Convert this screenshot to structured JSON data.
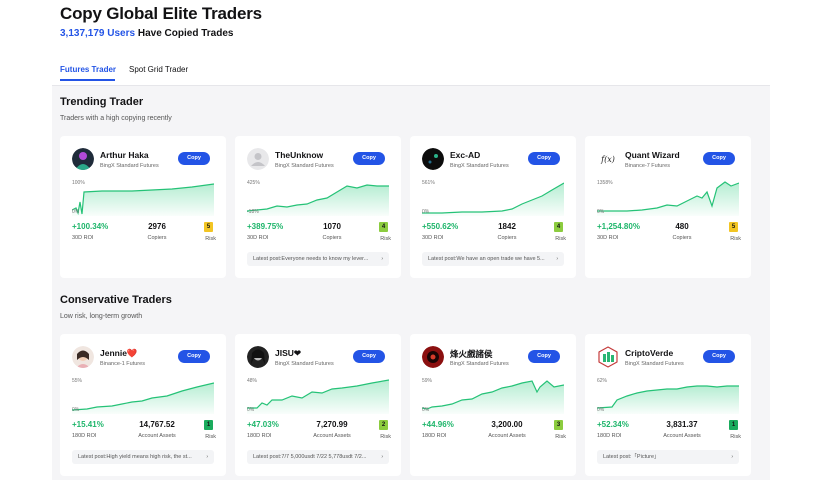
{
  "header": {
    "title": "Copy Global Elite Traders",
    "user_count": "3,137,179 Users",
    "subtitle_rest": " Have Copied Trades"
  },
  "tabs": [
    {
      "label": "Futures Trader",
      "active": true
    },
    {
      "label": "Spot Grid Trader",
      "active": false
    }
  ],
  "copy_label": "Copy",
  "sections": [
    {
      "title": "Trending Trader",
      "subtitle": "Traders with a high copying recently",
      "traders": [
        {
          "name": "Arthur Haka",
          "exchange": "BingX Standard Futures",
          "chart_top": "100%",
          "chart_bottom": "0%",
          "roi": "+100.34%",
          "roi_label": "30D ROI",
          "stat": "2976",
          "stat_label": "Copiers",
          "risk": "5",
          "risk_label": "Risk",
          "post": "",
          "avatar": "dark-figure"
        },
        {
          "name": "TheUnknow",
          "exchange": "BingX Standard Futures",
          "chart_top": "425%",
          "chart_bottom": "-18%",
          "roi": "+389.75%",
          "roi_label": "30D ROI",
          "stat": "1070",
          "stat_label": "Copiers",
          "risk": "4",
          "risk_label": "Risk",
          "post": "Latest post:Everyone needs to know my lever...",
          "avatar": "default-user"
        },
        {
          "name": "Exc-AD",
          "exchange": "BingX Standard Futures",
          "chart_top": "561%",
          "chart_bottom": "0%",
          "roi": "+550.62%",
          "roi_label": "30D ROI",
          "stat": "1842",
          "stat_label": "Copiers",
          "risk": "4",
          "risk_label": "Risk",
          "post": "Latest post:We have an open trade we have 5...",
          "avatar": "dark-circle"
        },
        {
          "name": "Quant Wizard",
          "exchange": "Binance-7 Futures",
          "chart_top": "1358%",
          "chart_bottom": "0%",
          "roi": "+1,254.80%",
          "roi_label": "30D ROI",
          "stat": "480",
          "stat_label": "Copiers",
          "risk": "5",
          "risk_label": "Risk",
          "post": "",
          "avatar": "function-fx"
        }
      ]
    },
    {
      "title": "Conservative Traders",
      "subtitle": "Low risk, long-term growth",
      "traders": [
        {
          "name": "Jennie❤️",
          "exchange": "Binance-1 Futures",
          "chart_top": "55%",
          "chart_bottom": "0%",
          "roi": "+15.41%",
          "roi_label": "180D ROI",
          "stat": "14,767.52",
          "stat_label": "Account Assets",
          "risk": "1",
          "risk_label": "Risk",
          "post": "Latest post:High yield means high risk, the st...",
          "avatar": "photo-woman"
        },
        {
          "name": "JISU❤",
          "exchange": "BingX Standard Futures",
          "chart_top": "48%",
          "chart_bottom": "0%",
          "roi": "+47.03%",
          "roi_label": "180D ROI",
          "stat": "7,270.99",
          "stat_label": "Account Assets",
          "risk": "2",
          "risk_label": "Risk",
          "post": "Latest post:7/7 5,000usdt 7/22 5,778usdt 7/2...",
          "avatar": "photo-bw"
        },
        {
          "name": "烽火戲諸侯",
          "exchange": "BingX Standard Futures",
          "chart_top": "59%",
          "chart_bottom": "0%",
          "roi": "+44.96%",
          "roi_label": "180D ROI",
          "stat": "3,200.00",
          "stat_label": "Account Assets",
          "risk": "3",
          "risk_label": "Risk",
          "post": "",
          "avatar": "red-logo"
        },
        {
          "name": "CriptoVerde",
          "exchange": "BingX Standard Futures",
          "chart_top": "62%",
          "chart_bottom": "0%",
          "roi": "+52.34%",
          "roi_label": "180D ROI",
          "stat": "3,831.37",
          "stat_label": "Account Assets",
          "risk": "1",
          "risk_label": "Risk",
          "post": "Latest post:「Picture」",
          "avatar": "green-logo"
        }
      ]
    }
  ],
  "colors": {
    "accent": "#2354e6",
    "positive": "#1db56a",
    "risk_high": "#f2c524",
    "risk_mid": "#8ccc3f",
    "risk_low": "#1aab5d"
  }
}
